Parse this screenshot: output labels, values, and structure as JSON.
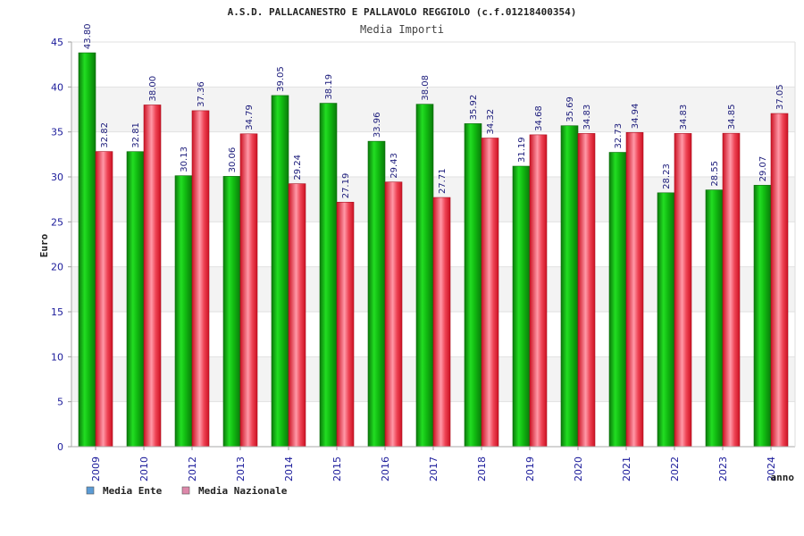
{
  "chart_data": {
    "type": "bar",
    "title": "A.S.D. PALLACANESTRO E PALLAVOLO REGGIOLO (c.f.01218400354)",
    "subtitle": "Media Importi",
    "xlabel": "anno",
    "ylabel": "Euro",
    "ylim": [
      0,
      45
    ],
    "yticks": [
      0,
      5,
      10,
      15,
      20,
      25,
      30,
      35,
      40,
      45
    ],
    "grid": true,
    "legend_position": "bottom-left",
    "categories": [
      "2009",
      "2010",
      "2012",
      "2013",
      "2014",
      "2015",
      "2016",
      "2017",
      "2018",
      "2019",
      "2020",
      "2021",
      "2022",
      "2023",
      "2024"
    ],
    "series": [
      {
        "name": "Media Ente",
        "legend_color": "#5b9bd5",
        "color": "#22bb22",
        "values": [
          43.8,
          32.81,
          30.13,
          30.06,
          39.05,
          38.19,
          33.96,
          38.08,
          35.92,
          31.19,
          35.69,
          32.73,
          28.23,
          28.55,
          29.07
        ],
        "labels": [
          "43.80",
          "32.81",
          "30.13",
          "30.06",
          "39.05",
          "38.19",
          "33.96",
          "38.08",
          "35.92",
          "31.19",
          "35.69",
          "32.73",
          "28.23",
          "28.55",
          "29.07"
        ]
      },
      {
        "name": "Media Nazionale",
        "legend_color": "#dd88aa",
        "color": "#ee4455",
        "values": [
          32.82,
          38.0,
          37.36,
          34.79,
          29.24,
          27.19,
          29.43,
          27.71,
          34.32,
          34.68,
          34.83,
          34.94,
          34.83,
          34.85,
          37.05
        ],
        "labels": [
          "32.82",
          "38.00",
          "37.36",
          "34.79",
          "29.24",
          "27.19",
          "29.43",
          "27.71",
          "34.32",
          "34.68",
          "34.83",
          "34.94",
          "34.83",
          "34.85",
          "37.05"
        ]
      }
    ]
  }
}
